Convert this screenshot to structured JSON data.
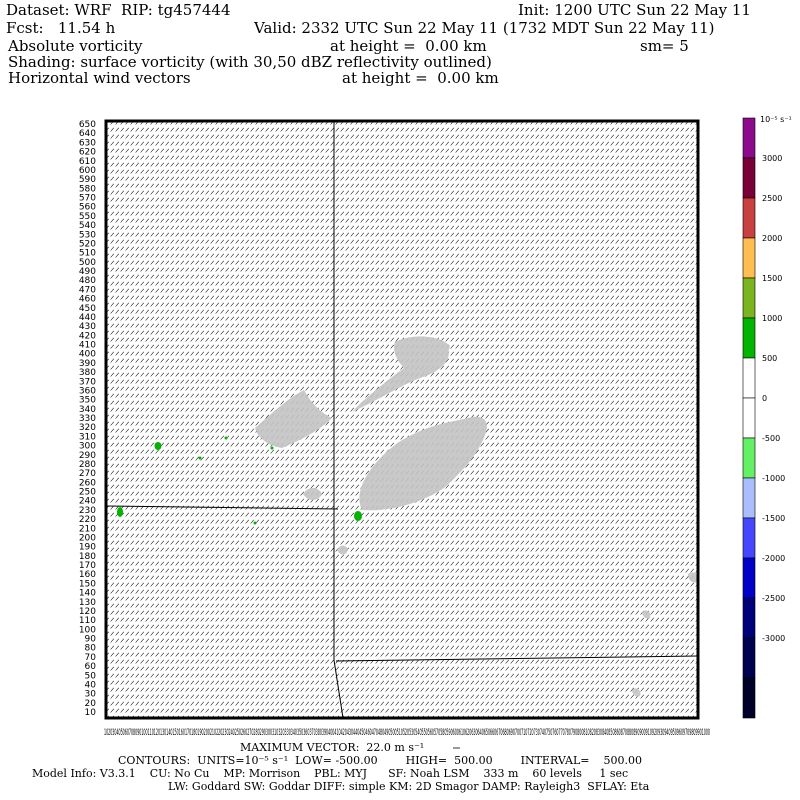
{
  "header": {
    "dataset_line": "Dataset: WRF  RIP: tg457444",
    "init_line": "Init: 1200 UTC Sun 22 May 11",
    "fcst_line": "Fcst:   11.54 h",
    "valid_line": "Valid: 2332 UTC Sun 22 May 11 (1732 MDT Sun 22 May 11)",
    "field1_name": "Absolute vorticity",
    "field1_height": "at height =  0.00 km",
    "field1_sm": "sm= 5",
    "field2_line": "Shading: surface vorticity (with 30,50 dBZ reflectivity outlined)",
    "field3_name": "Horizontal wind vectors",
    "field3_height": "at height =  0.00 km"
  },
  "axes": {
    "y_ticks": [
      "650",
      "640",
      "630",
      "620",
      "610",
      "600",
      "590",
      "580",
      "570",
      "560",
      "550",
      "540",
      "530",
      "520",
      "510",
      "500",
      "490",
      "480",
      "470",
      "460",
      "450",
      "440",
      "430",
      "420",
      "410",
      "400",
      "390",
      "380",
      "370",
      "360",
      "350",
      "340",
      "330",
      "320",
      "310",
      "300",
      "290",
      "280",
      "270",
      "260",
      "250",
      "240",
      "230",
      "220",
      "210",
      "200",
      "190",
      "180",
      "170",
      "160",
      "150",
      "140",
      "130",
      "120",
      "110",
      "100",
      "90",
      "80",
      "70",
      "60",
      "50",
      "40",
      "30",
      "20",
      "10"
    ],
    "x_ticks_text": "1020304050607080901001101201301401501601701801902002102202302402502602702802903003103203303403503603703803904004104204304404504604704804905005105205305405505605705805906006106206306406506606706806907007107207307407507607707807908008108208308408508608708808909009109209309409509609709809901000"
  },
  "colorbar": {
    "unit": "10⁻⁵ s⁻¹",
    "labels": [
      "3000",
      "2500",
      "2000",
      "1500",
      "1000",
      "500",
      "0",
      "-500",
      "-1000",
      "-1500",
      "-2000",
      "-2500",
      "-3000"
    ],
    "colors": [
      "#8c0a8c",
      "#7a0038",
      "#c84040",
      "#ffbe50",
      "#7ab41e",
      "#00b400",
      "#ffffff",
      "#ffffff",
      "#64f064",
      "#aabeff",
      "#4646ff",
      "#0000c8",
      "#00007a",
      "#000050",
      "#000028"
    ]
  },
  "footer": {
    "max_vector": "MAXIMUM VECTOR:  22.0 m s⁻¹",
    "contours": "CONTOURS:  UNITS=10⁻⁵ s⁻¹  LOW= -500.00        HIGH=  500.00        INTERVAL=    500.00",
    "model_info": "Model Info: V3.3.1    CU: No Cu    MP: Morrison    PBL: MYJ      SF: Noah LSM    333 m    60 levels     1 sec",
    "model_info2": "LW: Goddard SW: Goddar DIFF: simple KM: 2D Smagor DAMP: Rayleigh3  SFLAY: Eta"
  }
}
